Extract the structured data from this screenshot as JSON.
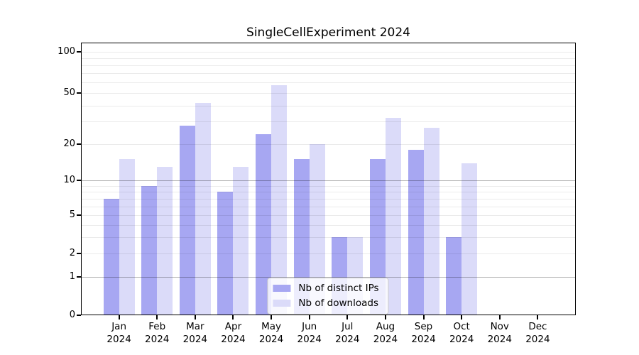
{
  "title": "SingleCellExperiment 2024",
  "colors": {
    "distinct_ips": "#a7a7f2",
    "downloads": "#dbdbf9",
    "grid_major": "rgba(0,0,0,0.30)",
    "grid_minor": "rgba(0,0,0,0.08)",
    "axis": "#000000",
    "text": "#000000",
    "legend_border": "#cccccc",
    "legend_bg": "rgba(255,255,255,0.8)"
  },
  "legend": {
    "items": [
      {
        "label": "Nb of distinct IPs",
        "color_key": "distinct_ips"
      },
      {
        "label": "Nb of downloads",
        "color_key": "downloads"
      }
    ]
  },
  "chart_data": {
    "type": "bar",
    "title": "SingleCellExperiment 2024",
    "xlabel": "",
    "ylabel": "",
    "scale": "log-like (position ~ log10(1+y))",
    "ylim": [
      0,
      120
    ],
    "grid": true,
    "legend_position": "lower center",
    "categories": [
      "Jan 2024",
      "Feb 2024",
      "Mar 2024",
      "Apr 2024",
      "May 2024",
      "Jun 2024",
      "Jul 2024",
      "Aug 2024",
      "Sep 2024",
      "Oct 2024",
      "Nov 2024",
      "Dec 2024"
    ],
    "series": [
      {
        "name": "Nb of distinct IPs",
        "values": [
          7,
          9,
          28,
          8,
          24,
          15,
          3,
          15,
          18,
          3,
          0,
          0
        ]
      },
      {
        "name": "Nb of downloads",
        "values": [
          15,
          13,
          42,
          13,
          57,
          20,
          3,
          32,
          27,
          14,
          0,
          0
        ]
      }
    ],
    "yticks": [
      0,
      1,
      2,
      5,
      10,
      20,
      50,
      100
    ],
    "grid_major_values": [
      1,
      10
    ],
    "grid_minor_values": [
      2,
      3,
      4,
      5,
      6,
      7,
      8,
      9,
      20,
      30,
      40,
      50,
      60,
      70,
      80,
      90,
      100
    ]
  }
}
